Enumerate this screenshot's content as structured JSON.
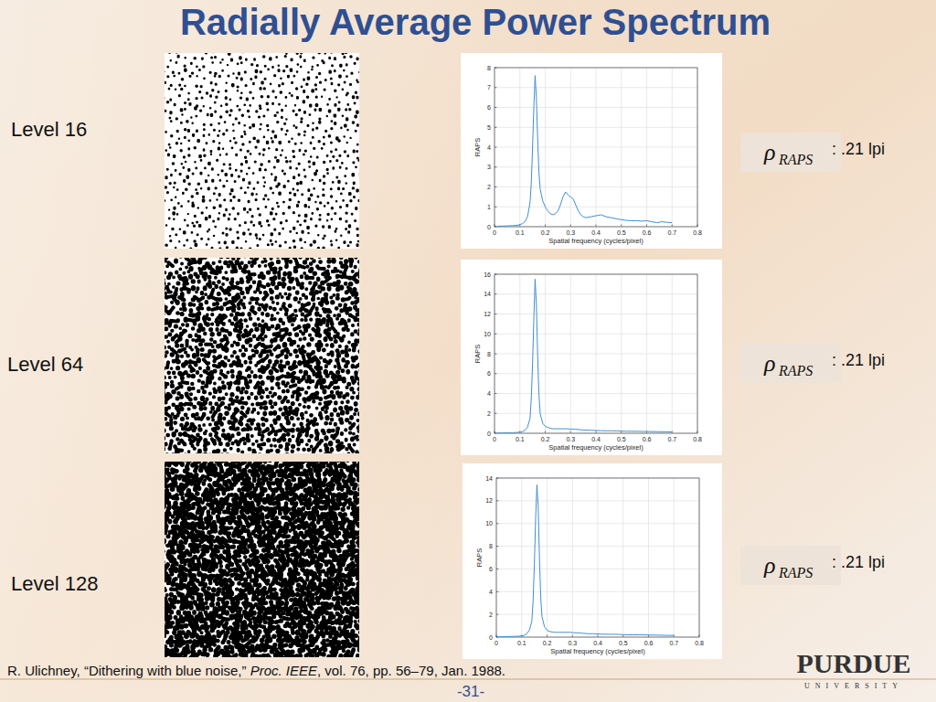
{
  "slide": {
    "title": "Radially Average Power Spectrum",
    "citation": {
      "before": "R. Ulichney, “Dithering with blue noise,” ",
      "journal": "Proc. IEEE",
      "after": ", vol. 76, pp. 56–79, Jan. 1988."
    },
    "page": "-31-",
    "logo": {
      "name": "PURDUE",
      "subtitle": "UNIVERSITY"
    }
  },
  "chart_data": [
    {
      "type": "line",
      "title": "Level 16",
      "annotation": {
        "symbol": "ρ",
        "subscript": "RAPS",
        "text": ": .21 lpi"
      },
      "x_label": "Spatial frequency (cycles/pixel)",
      "y_label": "RAPS",
      "x": [
        0.01,
        0.03,
        0.05,
        0.07,
        0.09,
        0.11,
        0.12,
        0.13,
        0.14,
        0.145,
        0.15,
        0.155,
        0.16,
        0.165,
        0.17,
        0.175,
        0.18,
        0.19,
        0.2,
        0.21,
        0.22,
        0.23,
        0.24,
        0.25,
        0.26,
        0.27,
        0.28,
        0.29,
        0.3,
        0.31,
        0.32,
        0.33,
        0.34,
        0.35,
        0.36,
        0.38,
        0.4,
        0.42,
        0.44,
        0.46,
        0.48,
        0.5,
        0.52,
        0.54,
        0.56,
        0.58,
        0.6,
        0.62,
        0.64,
        0.66,
        0.68,
        0.7
      ],
      "values": [
        0.02,
        0.03,
        0.04,
        0.05,
        0.07,
        0.15,
        0.25,
        0.5,
        1.2,
        2.2,
        4.0,
        6.0,
        7.6,
        6.5,
        4.5,
        2.8,
        1.9,
        1.3,
        1.0,
        0.8,
        0.65,
        0.6,
        0.65,
        0.8,
        1.1,
        1.5,
        1.75,
        1.6,
        1.5,
        1.4,
        1.1,
        0.8,
        0.6,
        0.5,
        0.45,
        0.5,
        0.55,
        0.6,
        0.5,
        0.45,
        0.4,
        0.35,
        0.32,
        0.3,
        0.3,
        0.28,
        0.3,
        0.25,
        0.2,
        0.25,
        0.22,
        0.2
      ],
      "color": "#3f8fd2",
      "xlim": [
        0,
        0.8
      ],
      "xticks": [
        0,
        0.1,
        0.2,
        0.3,
        0.4,
        0.5,
        0.6,
        0.7,
        0.8
      ],
      "ylim": [
        0,
        8
      ],
      "yticks": [
        0,
        1,
        2,
        3,
        4,
        5,
        6,
        7,
        8
      ],
      "grid": true
    },
    {
      "type": "line",
      "title": "Level 64",
      "annotation": {
        "symbol": "ρ",
        "subscript": "RAPS",
        "text": ": .21 lpi"
      },
      "x_label": "Spatial frequency (cycles/pixel)",
      "y_label": "RAPS",
      "x": [
        0.01,
        0.03,
        0.05,
        0.07,
        0.09,
        0.11,
        0.12,
        0.13,
        0.14,
        0.145,
        0.15,
        0.155,
        0.16,
        0.165,
        0.17,
        0.175,
        0.18,
        0.19,
        0.2,
        0.21,
        0.22,
        0.23,
        0.24,
        0.25,
        0.26,
        0.27,
        0.28,
        0.29,
        0.3,
        0.31,
        0.32,
        0.33,
        0.34,
        0.35,
        0.36,
        0.38,
        0.4,
        0.42,
        0.44,
        0.46,
        0.48,
        0.5,
        0.52,
        0.54,
        0.56,
        0.58,
        0.6,
        0.62,
        0.64,
        0.66,
        0.68,
        0.7
      ],
      "values": [
        0.02,
        0.03,
        0.05,
        0.06,
        0.08,
        0.15,
        0.3,
        0.6,
        1.5,
        3.5,
        7,
        11.5,
        15.5,
        13,
        8,
        4,
        2,
        1,
        0.7,
        0.6,
        0.5,
        0.45,
        0.45,
        0.45,
        0.45,
        0.45,
        0.45,
        0.45,
        0.42,
        0.4,
        0.4,
        0.38,
        0.35,
        0.33,
        0.32,
        0.3,
        0.28,
        0.26,
        0.25,
        0.25,
        0.24,
        0.22,
        0.2,
        0.2,
        0.2,
        0.18,
        0.18,
        0.17,
        0.16,
        0.15,
        0.15,
        0.12
      ],
      "color": "#3f8fd2",
      "xlim": [
        0,
        0.8
      ],
      "xticks": [
        0,
        0.1,
        0.2,
        0.3,
        0.4,
        0.5,
        0.6,
        0.7,
        0.8
      ],
      "ylim": [
        0,
        16
      ],
      "yticks": [
        0,
        2,
        4,
        6,
        8,
        10,
        12,
        14,
        16
      ],
      "grid": true
    },
    {
      "type": "line",
      "title": "Level 128",
      "annotation": {
        "symbol": "ρ",
        "subscript": "RAPS",
        "text": ": .21 lpi"
      },
      "x_label": "Spatial frequency (cycles/pixel)",
      "y_label": "RAPS",
      "x": [
        0.01,
        0.03,
        0.05,
        0.07,
        0.09,
        0.11,
        0.12,
        0.13,
        0.14,
        0.145,
        0.15,
        0.155,
        0.16,
        0.165,
        0.17,
        0.175,
        0.18,
        0.19,
        0.2,
        0.21,
        0.22,
        0.23,
        0.24,
        0.25,
        0.26,
        0.27,
        0.28,
        0.29,
        0.3,
        0.31,
        0.32,
        0.33,
        0.34,
        0.35,
        0.36,
        0.38,
        0.4,
        0.42,
        0.44,
        0.46,
        0.48,
        0.5,
        0.52,
        0.54,
        0.56,
        0.58,
        0.6,
        0.62,
        0.64,
        0.66,
        0.68,
        0.7
      ],
      "values": [
        0.02,
        0.03,
        0.05,
        0.06,
        0.08,
        0.15,
        0.3,
        0.6,
        1.4,
        3.2,
        6.5,
        10.5,
        13.4,
        11.5,
        7,
        3.5,
        1.8,
        0.9,
        0.6,
        0.5,
        0.45,
        0.42,
        0.42,
        0.42,
        0.42,
        0.42,
        0.42,
        0.42,
        0.4,
        0.38,
        0.38,
        0.36,
        0.34,
        0.32,
        0.3,
        0.3,
        0.28,
        0.26,
        0.25,
        0.25,
        0.24,
        0.22,
        0.2,
        0.2,
        0.2,
        0.2,
        0.18,
        0.18,
        0.17,
        0.16,
        0.15,
        0.15
      ],
      "color": "#3f8fd2",
      "xlim": [
        0,
        0.8
      ],
      "xticks": [
        0,
        0.1,
        0.2,
        0.3,
        0.4,
        0.5,
        0.6,
        0.7,
        0.8
      ],
      "ylim": [
        0,
        14
      ],
      "yticks": [
        0,
        2,
        4,
        6,
        8,
        10,
        12,
        14
      ],
      "grid": true
    }
  ]
}
